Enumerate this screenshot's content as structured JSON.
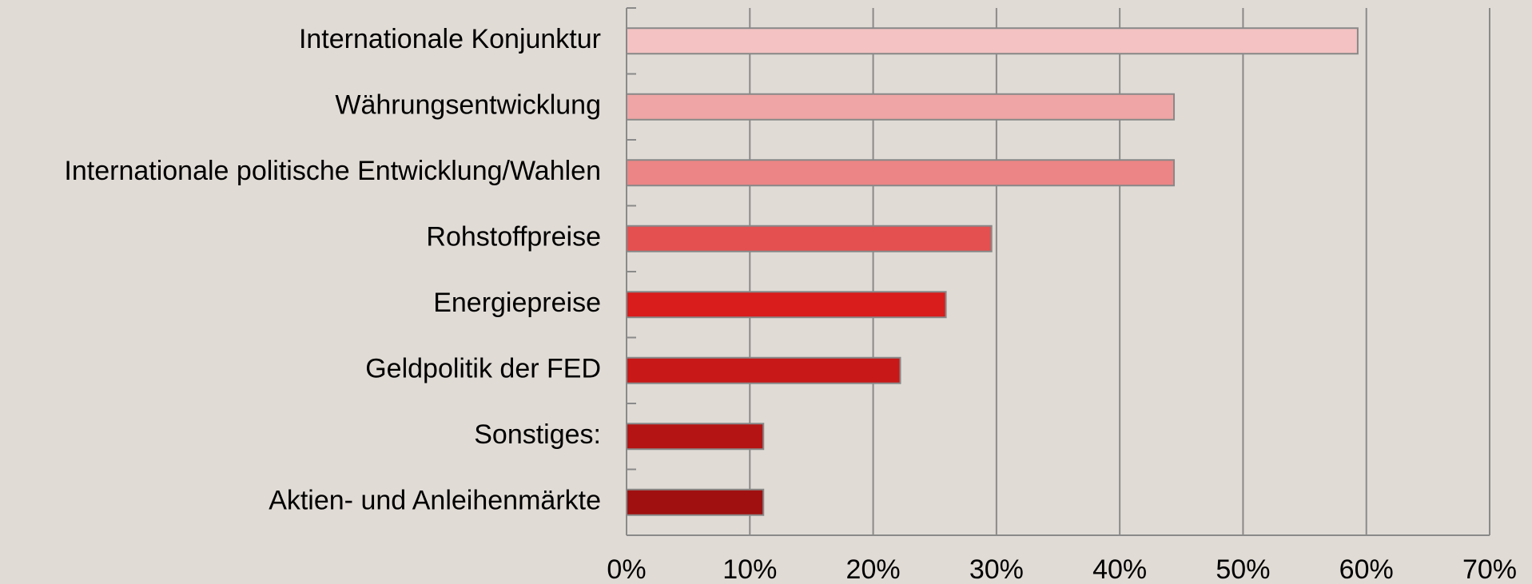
{
  "chart_data": {
    "type": "bar",
    "orientation": "horizontal",
    "categories": [
      "Internationale Konjunktur",
      "Währungsentwicklung",
      "Internationale politische Entwicklung/Wahlen",
      "Rohstoffpreise",
      "Energiepreise",
      "Geldpolitik der FED",
      "Sonstiges:",
      "Aktien- und Anleihenmärkte"
    ],
    "values": [
      59.3,
      44.4,
      44.4,
      29.6,
      25.9,
      22.2,
      11.1,
      11.1
    ],
    "colors": [
      "#f4c2c2",
      "#efa5a5",
      "#ec8585",
      "#e45050",
      "#d91c1c",
      "#c81818",
      "#b51414",
      "#a01010"
    ],
    "xlim": [
      0,
      70
    ],
    "xticks": [
      {
        "value": 0,
        "label": "0%"
      },
      {
        "value": 10,
        "label": "10%"
      },
      {
        "value": 20,
        "label": "20%"
      },
      {
        "value": 30,
        "label": "30%"
      },
      {
        "value": 40,
        "label": "40%"
      },
      {
        "value": 50,
        "label": "50%"
      },
      {
        "value": 60,
        "label": "60%"
      },
      {
        "value": 70,
        "label": "70%"
      }
    ],
    "grid": true
  }
}
